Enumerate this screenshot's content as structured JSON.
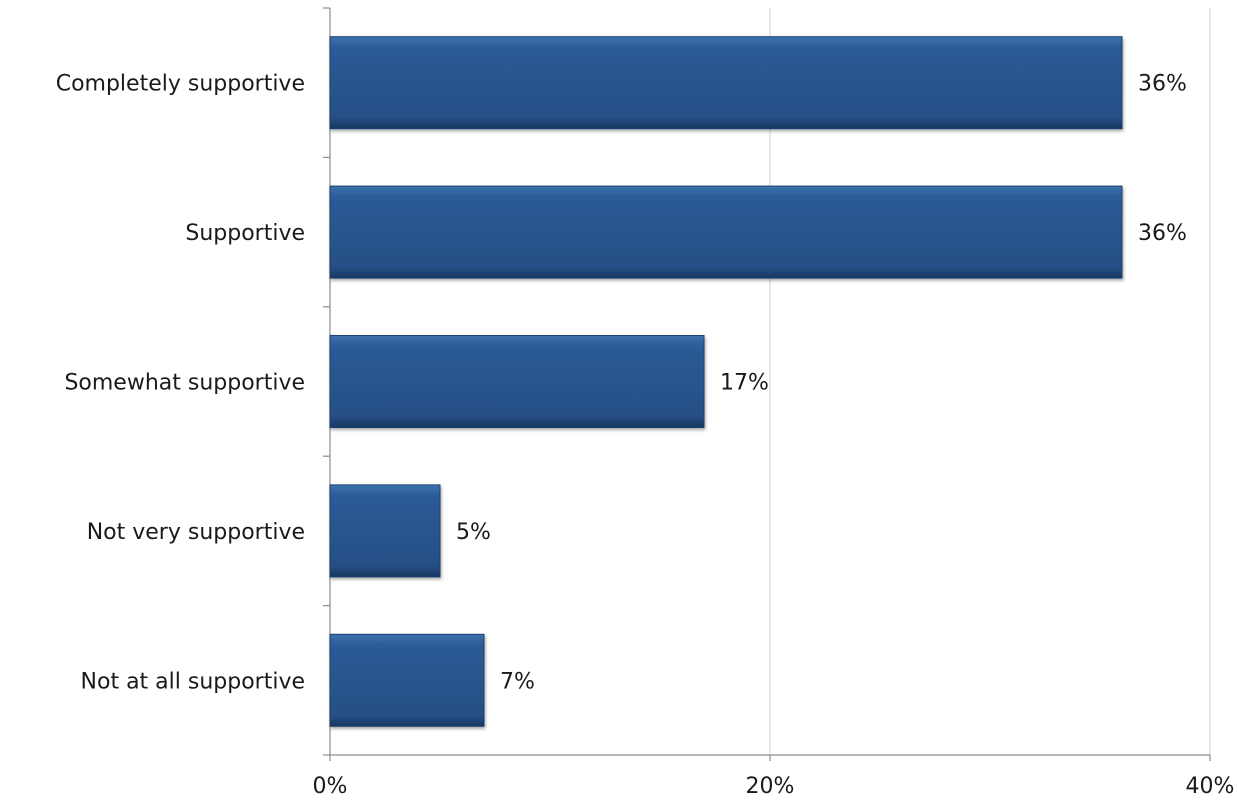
{
  "chart_data": {
    "type": "bar",
    "orientation": "horizontal",
    "categories": [
      "Completely supportive",
      "Supportive",
      "Somewhat supportive",
      "Not very supportive",
      "Not at all supportive"
    ],
    "values": [
      36,
      36,
      17,
      5,
      7
    ],
    "value_labels": [
      "36%",
      "36%",
      "17%",
      "5%",
      "7%"
    ],
    "xlim": [
      0,
      40
    ],
    "xticks": [
      0,
      20,
      40
    ],
    "xtick_labels": [
      "0%",
      "20%",
      "40%"
    ],
    "grid": "vertical",
    "bar_color": "#2a5a94",
    "grid_color": "#d9d9d9",
    "axis_color": "#8c8c8c"
  }
}
